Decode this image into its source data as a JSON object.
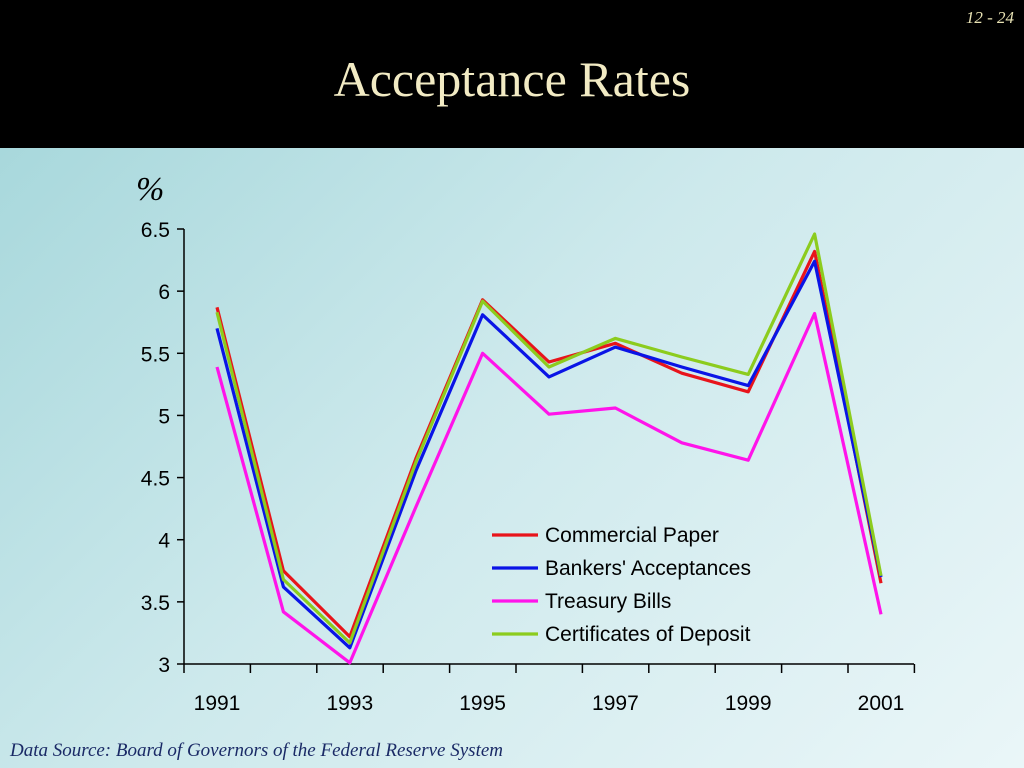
{
  "slide": {
    "number": "12 - 24",
    "title": "Acceptance Rates",
    "source": "Data Source: Board of Governors of the Federal Reserve System"
  },
  "chart_data": {
    "type": "line",
    "ylabel": "%",
    "ylim": [
      3,
      6.5
    ],
    "yticks": [
      "6.5",
      "6",
      "5.5",
      "5",
      "4.5",
      "4",
      "3.5",
      "3"
    ],
    "x": [
      1991,
      1992,
      1993,
      1994,
      1995,
      1996,
      1997,
      1998,
      1999,
      2000,
      2001
    ],
    "xtick_labels": [
      "1991",
      "1993",
      "1995",
      "1997",
      "1999",
      "2001"
    ],
    "legend_position": "bottom-right",
    "series": [
      {
        "name": "Commercial Paper",
        "color": "#e8141b",
        "values": [
          5.87,
          3.75,
          3.22,
          4.66,
          5.93,
          5.43,
          5.58,
          5.34,
          5.19,
          6.32,
          3.65
        ]
      },
      {
        "name": "Bankers' Acceptances",
        "color": "#0a14e6",
        "values": [
          5.7,
          3.62,
          3.13,
          4.56,
          5.81,
          5.31,
          5.55,
          5.39,
          5.24,
          6.24,
          3.7
        ]
      },
      {
        "name": "Treasury Bills",
        "color": "#ff14ea",
        "values": [
          5.39,
          3.42,
          3.01,
          4.27,
          5.5,
          5.01,
          5.06,
          4.78,
          4.64,
          5.82,
          3.4
        ]
      },
      {
        "name": "Certificates of Deposit",
        "color": "#8ccc1e",
        "values": [
          5.83,
          3.68,
          3.17,
          4.63,
          5.92,
          5.39,
          5.62,
          5.47,
          5.33,
          6.46,
          3.71
        ]
      }
    ]
  }
}
